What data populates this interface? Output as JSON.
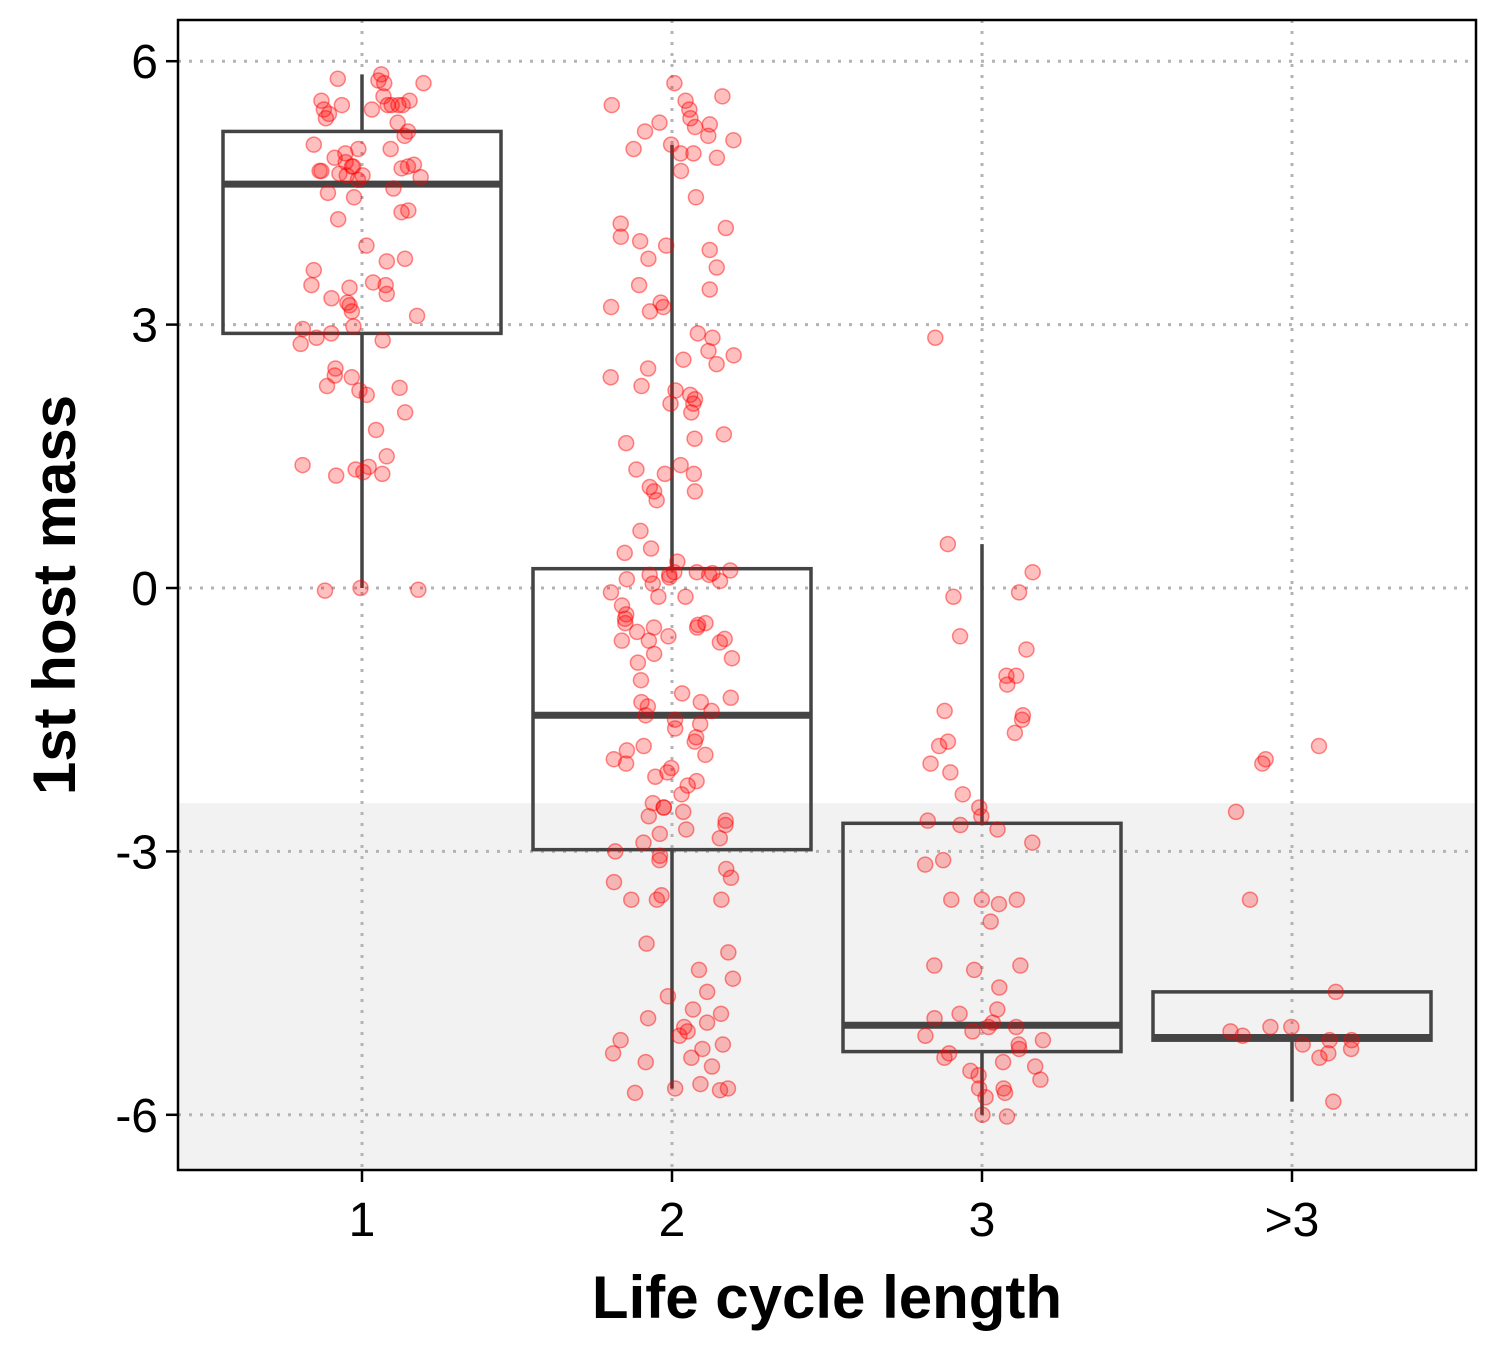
{
  "chart_data": {
    "type": "boxplot",
    "xlabel": "Life cycle length",
    "ylabel": "1st host mass",
    "categories": [
      "1",
      "2",
      "3",
      ">3"
    ],
    "ylim": [
      -6.6,
      6.45
    ],
    "yticks": [
      6,
      3,
      0,
      -3,
      -6
    ],
    "ytick_labels": [
      "6",
      "3",
      "0",
      "-3",
      "-6"
    ],
    "grid": "dotted major x and y",
    "shaded_band": {
      "from": -6.6,
      "to": -2.45,
      "color": "#f2f2f2"
    },
    "colors": {
      "points": "#ff0000",
      "box": "#444444",
      "band": "#f2f2f2"
    },
    "boxes": [
      {
        "category": "1",
        "whisker_low": 0.0,
        "q1": 2.9,
        "median": 4.6,
        "q3": 5.2,
        "whisker_high": 5.85
      },
      {
        "category": "2",
        "whisker_low": -5.7,
        "q1": -2.98,
        "median": -1.45,
        "q3": 0.22,
        "whisker_high": 5.05
      },
      {
        "category": "3",
        "whisker_low": -6.0,
        "q1": -5.28,
        "median": -4.98,
        "q3": -2.68,
        "whisker_high": 0.5
      },
      {
        "category": ">3",
        "whisker_low": -5.85,
        "q1": -5.15,
        "median": -5.12,
        "q3": -4.6,
        "whisker_high": -4.6
      }
    ],
    "points": [
      {
        "category": "1",
        "values": [
          5.85,
          5.8,
          5.78,
          5.75,
          5.75,
          5.6,
          5.55,
          5.55,
          5.5,
          5.5,
          5.5,
          5.5,
          5.5,
          5.45,
          5.45,
          5.4,
          5.35,
          5.3,
          5.2,
          5.15,
          5.05,
          5.0,
          5.0,
          4.95,
          4.9,
          4.85,
          4.82,
          4.8,
          4.8,
          4.8,
          4.78,
          4.75,
          4.75,
          4.72,
          4.7,
          4.7,
          4.68,
          4.65,
          4.55,
          4.5,
          4.45,
          4.3,
          4.28,
          4.2,
          3.9,
          3.75,
          3.72,
          3.62,
          3.48,
          3.45,
          3.45,
          3.42,
          3.35,
          3.3,
          3.25,
          3.22,
          3.15,
          3.1,
          2.98,
          2.95,
          2.9,
          2.85,
          2.82,
          2.78,
          2.5,
          2.42,
          2.4,
          2.3,
          2.28,
          2.25,
          2.2,
          2.0,
          1.8,
          1.5,
          1.4,
          1.38,
          1.35,
          1.32,
          1.3,
          1.28,
          0.0,
          -0.02,
          -0.03
        ]
      },
      {
        "category": "2",
        "values": [
          5.75,
          5.6,
          5.55,
          5.5,
          5.45,
          5.35,
          5.3,
          5.28,
          5.25,
          5.2,
          5.15,
          5.1,
          5.05,
          5.0,
          4.95,
          4.95,
          4.9,
          4.75,
          4.45,
          4.15,
          4.1,
          4.0,
          3.95,
          3.9,
          3.85,
          3.75,
          3.65,
          3.45,
          3.4,
          3.25,
          3.2,
          3.2,
          3.15,
          2.9,
          2.85,
          2.7,
          2.65,
          2.6,
          2.55,
          2.5,
          2.4,
          2.3,
          2.25,
          2.2,
          2.15,
          2.1,
          2.1,
          2.0,
          1.75,
          1.7,
          1.65,
          1.4,
          1.35,
          1.3,
          1.3,
          1.15,
          1.1,
          1.1,
          1.0,
          0.65,
          0.45,
          0.4,
          0.3,
          0.2,
          0.18,
          0.18,
          0.17,
          0.15,
          0.15,
          0.15,
          0.12,
          0.1,
          0.08,
          0.05,
          -0.05,
          -0.1,
          -0.1,
          -0.2,
          -0.3,
          -0.35,
          -0.4,
          -0.4,
          -0.42,
          -0.45,
          -0.45,
          -0.5,
          -0.55,
          -0.58,
          -0.6,
          -0.6,
          -0.62,
          -0.75,
          -0.8,
          -0.85,
          -1.05,
          -1.2,
          -1.25,
          -1.3,
          -1.3,
          -1.35,
          -1.4,
          -1.45,
          -1.5,
          -1.55,
          -1.6,
          -1.7,
          -1.75,
          -1.8,
          -1.85,
          -1.9,
          -1.95,
          -2.0,
          -2.05,
          -2.1,
          -2.15,
          -2.2,
          -2.25,
          -2.35,
          -2.45,
          -2.5,
          -2.5,
          -2.55,
          -2.6,
          -2.65,
          -2.7,
          -2.75,
          -2.8,
          -2.85,
          -2.9,
          -3.0,
          -3.05,
          -3.1,
          -3.2,
          -3.3,
          -3.35,
          -3.5,
          -3.55,
          -3.55,
          -3.55,
          -4.05,
          -4.15,
          -4.35,
          -4.45,
          -4.6,
          -4.65,
          -4.8,
          -4.85,
          -4.9,
          -4.95,
          -5.0,
          -5.05,
          -5.1,
          -5.15,
          -5.2,
          -5.25,
          -5.3,
          -5.35,
          -5.4,
          -5.45,
          -5.65,
          -5.7,
          -5.7,
          -5.72,
          -5.75
        ]
      },
      {
        "category": "3",
        "values": [
          2.85,
          0.5,
          0.18,
          -0.05,
          -0.1,
          -0.55,
          -0.7,
          -1.0,
          -1.0,
          -1.1,
          -1.4,
          -1.45,
          -1.5,
          -1.65,
          -1.75,
          -1.8,
          -2.0,
          -2.1,
          -2.35,
          -2.5,
          -2.6,
          -2.65,
          -2.7,
          -2.75,
          -2.9,
          -3.1,
          -3.15,
          -3.55,
          -3.55,
          -3.55,
          -3.6,
          -3.8,
          -4.3,
          -4.3,
          -4.35,
          -4.55,
          -4.8,
          -4.85,
          -4.9,
          -4.95,
          -5.0,
          -5.0,
          -5.05,
          -5.1,
          -5.15,
          -5.2,
          -5.25,
          -5.3,
          -5.35,
          -5.4,
          -5.45,
          -5.5,
          -5.55,
          -5.6,
          -5.7,
          -5.7,
          -5.75,
          -5.8,
          -6.0,
          -6.02
        ]
      },
      {
        "category": ">3",
        "values": [
          -1.8,
          -1.95,
          -2.0,
          -2.55,
          -3.55,
          -4.6,
          -5.0,
          -5.0,
          -5.05,
          -5.1,
          -5.15,
          -5.15,
          -5.2,
          -5.25,
          -5.3,
          -5.35,
          -5.85
        ]
      }
    ]
  }
}
